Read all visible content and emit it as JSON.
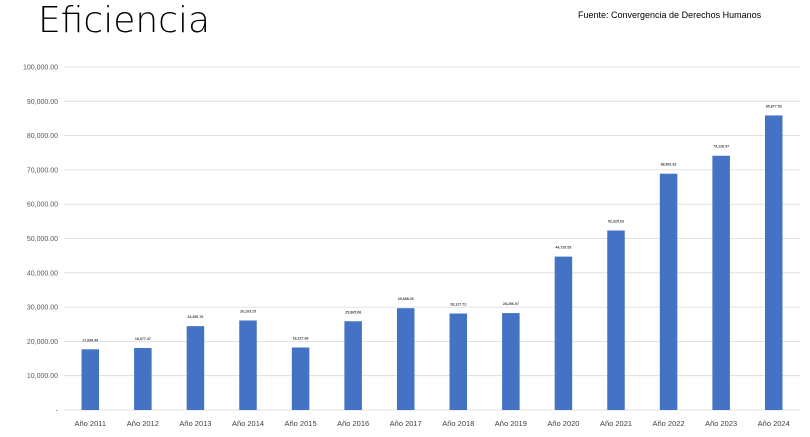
{
  "header": {
    "title": "Eficiencia",
    "source": "Fuente: Convergencia de Derechos Humanos"
  },
  "chart_data": {
    "type": "bar",
    "title": "Eficiencia",
    "xlabel": "",
    "ylabel": "",
    "ylim": [
      0,
      100000
    ],
    "grid": true,
    "legend": "none",
    "bar_color": "#4472c4",
    "categories": [
      "Año 2011",
      "Año 2012",
      "Año 2013",
      "Año 2014",
      "Año 2015",
      "Año 2016",
      "Año 2017",
      "Año 2018",
      "Año 2019",
      "Año 2020",
      "Año 2021",
      "Año 2022",
      "Año 2023",
      "Año 2024"
    ],
    "values": [
      17699.49,
      18077.47,
      24450.76,
      26103.15,
      18227.66,
      25865.08,
      29688.26,
      28127.72,
      28256.07,
      44720.53,
      52325.03,
      68891.82,
      74128.47,
      85877.53
    ],
    "value_labels": [
      "17,699.49",
      "18,077.47",
      "24,450.76",
      "26,103.15",
      "18,227.66",
      "25,865.08",
      "29,688.26",
      "28,127.72",
      "28,256.07",
      "44,720.53",
      "52,325.03",
      "68,891.82",
      "74,128.47",
      "85,877.53"
    ],
    "y_ticks": [
      0,
      10000,
      20000,
      30000,
      40000,
      50000,
      60000,
      70000,
      80000,
      90000,
      100000
    ],
    "y_tick_labels": [
      "-",
      "10,000.00",
      "20,000.00",
      "30,000.00",
      "40,000.00",
      "50,000.00",
      "60,000.00",
      "70,000.00",
      "80,000.00",
      "90,000.00",
      "100,000.00"
    ]
  }
}
